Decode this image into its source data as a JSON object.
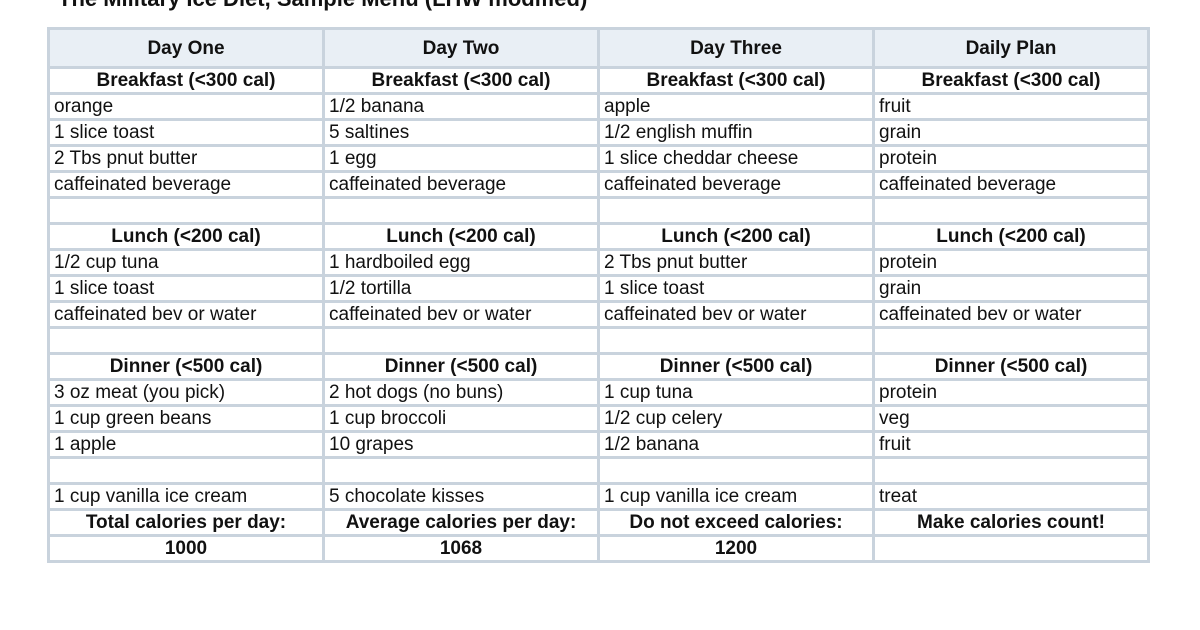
{
  "title": "The Military Ice Diet, Sample Menu (LHW modified)",
  "columns": [
    "Day One",
    "Day Two",
    "Day Three",
    "Daily Plan"
  ],
  "breakfast": {
    "headers": [
      "Breakfast (<300 cal)",
      "Breakfast (<300 cal)",
      "Breakfast (<300 cal)",
      "Breakfast (<300 cal)"
    ],
    "rows": [
      [
        "orange",
        "1/2 banana",
        "apple",
        "fruit"
      ],
      [
        "1 slice toast",
        "5 saltines",
        "1/2 english muffin",
        "grain"
      ],
      [
        "2 Tbs pnut butter",
        "1 egg",
        "1 slice cheddar cheese",
        "protein"
      ],
      [
        "caffeinated beverage",
        "caffeinated beverage",
        "caffeinated beverage",
        "caffeinated beverage"
      ]
    ]
  },
  "lunch": {
    "headers": [
      "Lunch (<200 cal)",
      "Lunch (<200 cal)",
      "Lunch (<200 cal)",
      "Lunch (<200 cal)"
    ],
    "rows": [
      [
        "1/2 cup tuna",
        "1 hardboiled egg",
        "2 Tbs pnut butter",
        "protein"
      ],
      [
        "1 slice toast",
        "1/2 tortilla",
        "1 slice toast",
        "grain"
      ],
      [
        "caffeinated bev or water",
        "caffeinated bev or water",
        "caffeinated bev or water",
        "caffeinated bev or water"
      ]
    ]
  },
  "dinner": {
    "headers": [
      "Dinner (<500 cal)",
      "Dinner (<500 cal)",
      "Dinner (<500 cal)",
      "Dinner (<500 cal)"
    ],
    "rows": [
      [
        "3 oz meat (you pick)",
        "2 hot dogs (no buns)",
        "1 cup tuna",
        "protein"
      ],
      [
        "1 cup green beans",
        "1 cup broccoli",
        "1/2 cup celery",
        "veg"
      ],
      [
        "1 apple",
        "10 grapes",
        "1/2 banana",
        "fruit"
      ]
    ]
  },
  "treat": [
    "1 cup vanilla ice cream",
    "5 chocolate kisses",
    "1 cup vanilla ice cream",
    "treat"
  ],
  "totals_labels": [
    "Total calories per day:",
    "Average calories per day:",
    "Do not exceed calories:",
    "Make calories count!"
  ],
  "totals_values": [
    "1000",
    "1068",
    "1200",
    ""
  ]
}
